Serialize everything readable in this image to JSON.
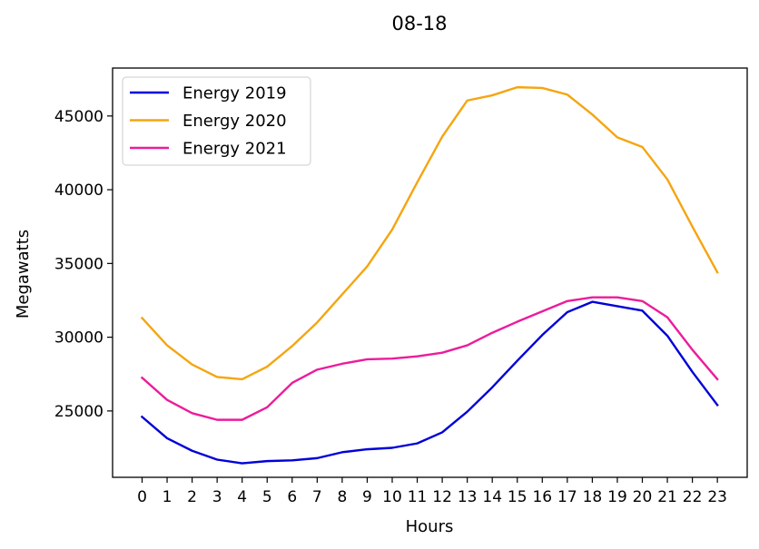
{
  "chart_data": {
    "type": "line",
    "title": "08-18",
    "xlabel": "Hours",
    "ylabel": "Megawatts",
    "x": [
      0,
      1,
      2,
      3,
      4,
      5,
      6,
      7,
      8,
      9,
      10,
      11,
      12,
      13,
      14,
      15,
      16,
      17,
      18,
      19,
      20,
      21,
      22,
      23
    ],
    "xticks": [
      "0",
      "1",
      "2",
      "3",
      "4",
      "5",
      "6",
      "7",
      "8",
      "9",
      "10",
      "11",
      "12",
      "13",
      "14",
      "15",
      "16",
      "17",
      "18",
      "19",
      "20",
      "21",
      "22",
      "23"
    ],
    "ylim": [
      20500,
      48250
    ],
    "yticks": [
      25000,
      30000,
      35000,
      40000,
      45000
    ],
    "ytick_labels": [
      "25000",
      "30000",
      "35000",
      "40000",
      "45000"
    ],
    "legend_position": "top-left",
    "grid": false,
    "series": [
      {
        "name": "Energy 2019",
        "color": "#0000d8",
        "values": [
          24600,
          23150,
          22300,
          21700,
          21450,
          21600,
          21650,
          21800,
          22200,
          22400,
          22500,
          22800,
          23550,
          24950,
          26600,
          28400,
          30150,
          31700,
          32400,
          32100,
          31800,
          30100,
          27650,
          25400
        ]
      },
      {
        "name": "Energy 2020",
        "color": "#f5a50f",
        "values": [
          31300,
          29450,
          28150,
          27300,
          27150,
          28000,
          29400,
          31000,
          32900,
          34800,
          37300,
          40500,
          43600,
          46050,
          46400,
          46950,
          46900,
          46450,
          45100,
          43550,
          42900,
          40700,
          37500,
          34400
        ]
      },
      {
        "name": "Energy 2021",
        "color": "#ec1c9b",
        "values": [
          27250,
          25750,
          24850,
          24400,
          24400,
          25250,
          26900,
          27800,
          28200,
          28500,
          28550,
          28700,
          28950,
          29450,
          30300,
          31050,
          31750,
          32450,
          32700,
          32700,
          32450,
          31350,
          29150,
          27150
        ]
      }
    ]
  }
}
